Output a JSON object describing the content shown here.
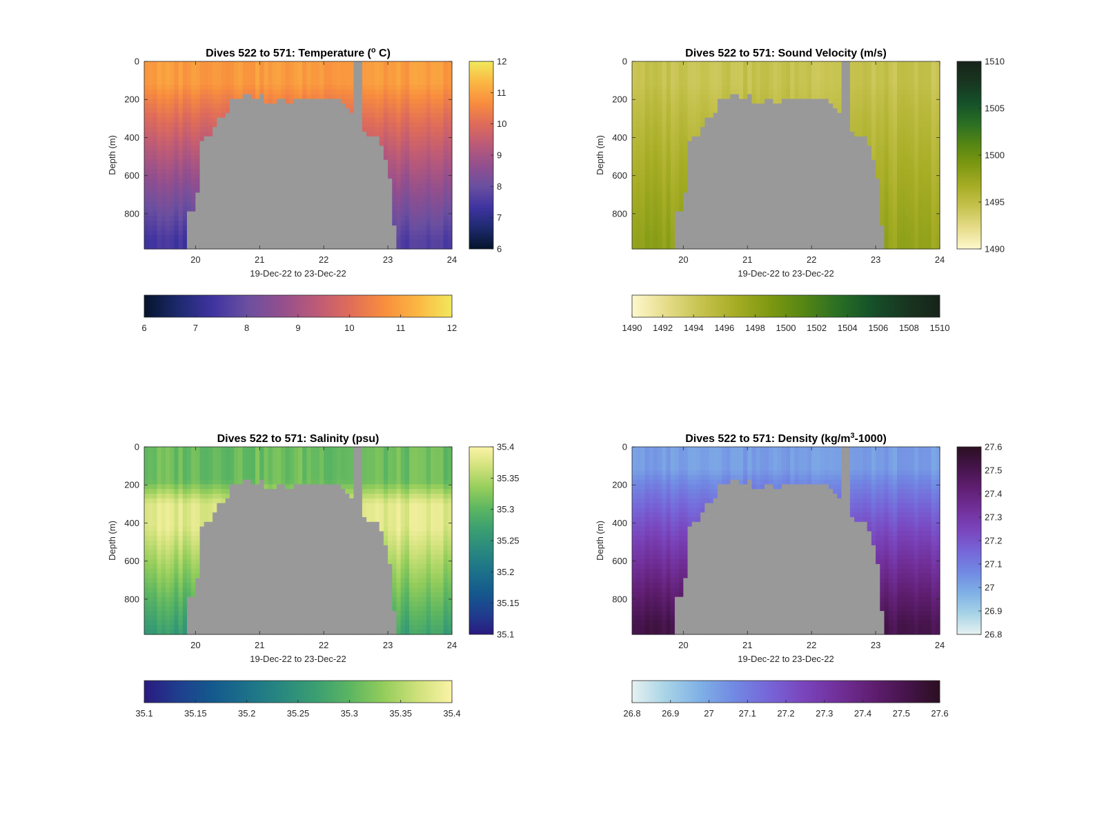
{
  "chart_data": [
    {
      "type": "heatmap",
      "title": "Dives 522 to 571: Temperature (° C)",
      "title_parts": [
        "Dives 522 to 571: Temperature (",
        "o",
        " C)"
      ],
      "xlabel": "19-Dec-22 to 23-Dec-22",
      "ylabel": "Depth (m)",
      "xlim": [
        19.2,
        24.0
      ],
      "ylim": [
        0,
        985
      ],
      "y_reversed": true,
      "xticks": [
        20,
        21,
        22,
        23,
        24
      ],
      "yticks": [
        0,
        200,
        400,
        600,
        800
      ],
      "colormap": "thermal",
      "colorbar_range": [
        6,
        12
      ],
      "colorbar_vertical_ticks": [
        "6",
        "7",
        "8",
        "9",
        "10",
        "11",
        "12"
      ],
      "colorbar_horizontal_ticks": [
        "6",
        "7",
        "8",
        "9",
        "10",
        "11",
        "12"
      ],
      "surface_value": 10.9,
      "deep_value_left": 7.4,
      "deep_value_right": 7.6,
      "no_data_color": "#999999",
      "grid": false
    },
    {
      "type": "heatmap",
      "title": "Dives 522 to 571: Sound Velocity (m/s)",
      "title_parts": [
        "Dives 522 to 571: Sound Velocity (m/s)"
      ],
      "xlabel": "19-Dec-22 to 23-Dec-22",
      "ylabel": "Depth (m)",
      "xlim": [
        19.2,
        24.0
      ],
      "ylim": [
        0,
        985
      ],
      "y_reversed": true,
      "xticks": [
        20,
        21,
        22,
        23,
        24
      ],
      "yticks": [
        0,
        200,
        400,
        600,
        800
      ],
      "colormap": "speed",
      "colorbar_range": [
        1490,
        1510
      ],
      "colorbar_vertical_ticks": [
        "1490",
        "1495",
        "1500",
        "1505",
        "1510"
      ],
      "colorbar_horizontal_ticks": [
        "1490",
        "1492",
        "1494",
        "1496",
        "1498",
        "1500",
        "1502",
        "1504",
        "1506",
        "1508",
        "1510"
      ],
      "surface_value": 1494.5,
      "deep_value_left": 1498.0,
      "deep_value_right": 1497.5,
      "no_data_color": "#999999",
      "grid": false
    },
    {
      "type": "heatmap",
      "title": "Dives 522 to 571: Salinity (psu)",
      "title_parts": [
        "Dives 522 to 571: Salinity (psu)"
      ],
      "xlabel": "19-Dec-22 to 23-Dec-22",
      "ylabel": "Depth (m)",
      "xlim": [
        19.2,
        24.0
      ],
      "ylim": [
        0,
        985
      ],
      "y_reversed": true,
      "xticks": [
        20,
        21,
        22,
        23,
        24
      ],
      "yticks": [
        0,
        200,
        400,
        600,
        800
      ],
      "colormap": "haline",
      "colorbar_range": [
        35.1,
        35.4
      ],
      "colorbar_vertical_ticks": [
        "35.1",
        "35.15",
        "35.2",
        "35.25",
        "35.3",
        "35.35",
        "35.4"
      ],
      "colorbar_horizontal_ticks": [
        "35.1",
        "35.15",
        "35.2",
        "35.25",
        "35.3",
        "35.35",
        "35.4"
      ],
      "surface_value": 35.31,
      "mid_value": 35.38,
      "deep_value_left": 35.26,
      "deep_value_right": 35.27,
      "no_data_color": "#999999",
      "grid": false
    },
    {
      "type": "heatmap",
      "title": "Dives 522 to 571: Density (kg/m³-1000)",
      "title_parts": [
        "Dives 522 to 571: Density (kg/m",
        "3",
        "-1000)"
      ],
      "xlabel": "19-Dec-22 to 23-Dec-22",
      "ylabel": "Depth (m)",
      "xlim": [
        19.2,
        24.0
      ],
      "ylim": [
        0,
        985
      ],
      "y_reversed": true,
      "xticks": [
        20,
        21,
        22,
        23,
        24
      ],
      "yticks": [
        0,
        200,
        400,
        600,
        800
      ],
      "colormap": "dense",
      "colorbar_range": [
        26.8,
        27.6
      ],
      "colorbar_vertical_ticks": [
        "26.8",
        "26.9",
        "27",
        "27.1",
        "27.2",
        "27.3",
        "27.4",
        "27.5",
        "27.6"
      ],
      "colorbar_horizontal_ticks": [
        "26.8",
        "26.9",
        "27",
        "27.1",
        "27.2",
        "27.3",
        "27.4",
        "27.5",
        "27.6"
      ],
      "surface_value": 27.02,
      "deep_value_left": 27.52,
      "deep_value_right": 27.5,
      "no_data_color": "#999999",
      "grid": false
    }
  ]
}
